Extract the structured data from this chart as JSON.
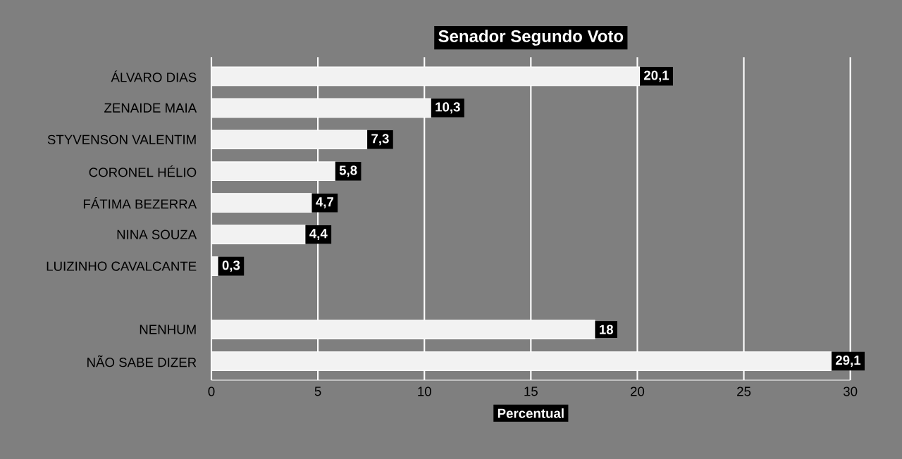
{
  "chart_data": {
    "type": "bar",
    "orientation": "horizontal",
    "title": "Senador Segundo Voto",
    "xlabel": "Percentual",
    "categories": [
      "ÁLVARO DIAS",
      "ZENAIDE MAIA",
      "STYVENSON VALENTIM",
      "CORONEL HÉLIO",
      "FÁTIMA BEZERRA",
      "NINA SOUZA",
      "LUIZINHO CAVALCANTE",
      null,
      "NENHUM",
      "NÃO SABE DIZER"
    ],
    "values": [
      20.1,
      10.3,
      7.3,
      5.8,
      4.7,
      4.4,
      0.3,
      null,
      18,
      29.1
    ],
    "value_labels": [
      "20,1",
      "10,3",
      "7,3",
      "5,8",
      "4,7",
      "4,4",
      "0,3",
      null,
      "18",
      "29,1"
    ],
    "color": "#f2f2f2",
    "xlim": [
      0,
      30
    ],
    "xticks": [
      0,
      5,
      10,
      15,
      20,
      25,
      30
    ],
    "grid": "x"
  }
}
